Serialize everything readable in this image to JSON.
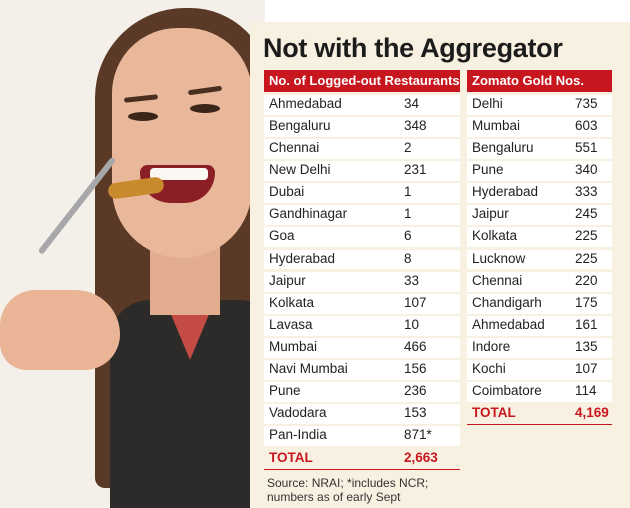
{
  "title": "Not with the Aggregator",
  "left_table": {
    "header": "No. of Logged-out Restaurants",
    "rows": [
      {
        "city": "Ahmedabad",
        "value": "34"
      },
      {
        "city": "Bengaluru",
        "value": "348"
      },
      {
        "city": "Chennai",
        "value": "2"
      },
      {
        "city": "New Delhi",
        "value": "231"
      },
      {
        "city": "Dubai",
        "value": "1"
      },
      {
        "city": "Gandhinagar",
        "value": "1"
      },
      {
        "city": "Goa",
        "value": "6"
      },
      {
        "city": "Hyderabad",
        "value": "8"
      },
      {
        "city": "Jaipur",
        "value": "33"
      },
      {
        "city": "Kolkata",
        "value": "107"
      },
      {
        "city": "Lavasa",
        "value": "10"
      },
      {
        "city": "Mumbai",
        "value": "466"
      },
      {
        "city": "Navi Mumbai",
        "value": "156"
      },
      {
        "city": "Pune",
        "value": "236"
      },
      {
        "city": "Vadodara",
        "value": "153"
      },
      {
        "city": "Pan-India",
        "value": "871*"
      }
    ],
    "total_label": "TOTAL",
    "total_value": "2,663"
  },
  "right_table": {
    "header": "Zomato Gold Nos.",
    "rows": [
      {
        "city": "Delhi",
        "value": "735"
      },
      {
        "city": "Mumbai",
        "value": "603"
      },
      {
        "city": "Bengaluru",
        "value": "551"
      },
      {
        "city": "Pune",
        "value": "340"
      },
      {
        "city": "Hyderabad",
        "value": "333"
      },
      {
        "city": "Jaipur",
        "value": "245"
      },
      {
        "city": "Kolkata",
        "value": "225"
      },
      {
        "city": "Lucknow",
        "value": "225"
      },
      {
        "city": "Chennai",
        "value": "220"
      },
      {
        "city": "Chandigarh",
        "value": "175"
      },
      {
        "city": "Ahmedabad",
        "value": "161"
      },
      {
        "city": "Indore",
        "value": "135"
      },
      {
        "city": "Kochi",
        "value": "107"
      },
      {
        "city": "Coimbatore",
        "value": "114"
      }
    ],
    "total_label": "TOTAL",
    "total_value": "4,169"
  },
  "source": {
    "line1": "Source: NRAI; *includes NCR;",
    "line2": "numbers as of early Sept"
  },
  "colors": {
    "accent_red": "#c8161e",
    "panel_bg": "#f8f1e2",
    "row_bg": "#ffffff"
  },
  "icons": {
    "photo": "woman-eating-with-fork-photo"
  }
}
